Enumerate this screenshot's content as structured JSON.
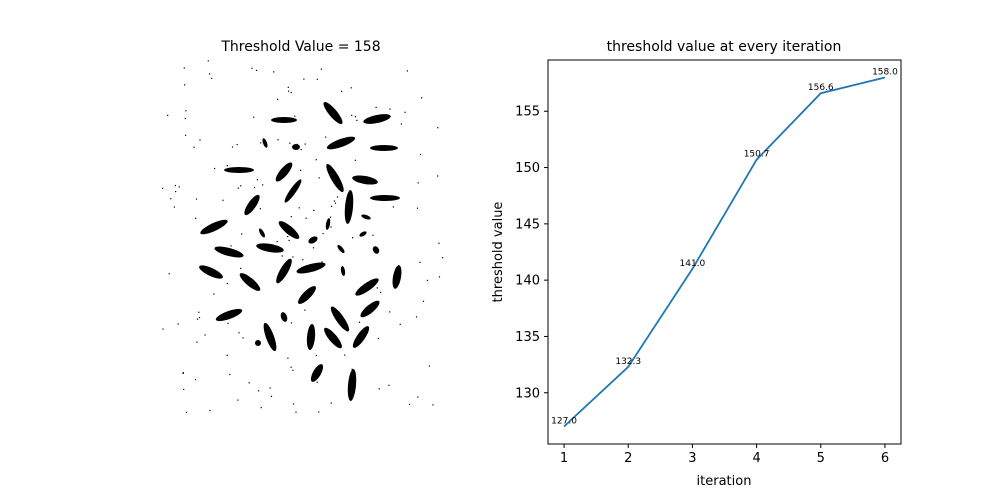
{
  "left_panel": {
    "title": "Threshold Value = 158"
  },
  "chart_data": {
    "type": "line",
    "title": "threshold value at every iteration",
    "xlabel": "iteration",
    "ylabel": "threshold value",
    "x": [
      1,
      2,
      3,
      4,
      5,
      6
    ],
    "series": [
      {
        "values": [
          127.0,
          132.3,
          141.0,
          150.7,
          156.6,
          158.0
        ],
        "color": "#1f77b4"
      }
    ],
    "point_labels": [
      "127.0",
      "132.3",
      "141.0",
      "150.7",
      "156.6",
      "158.0"
    ],
    "xticks": [
      "1",
      "2",
      "3",
      "4",
      "5",
      "6"
    ],
    "yticks": [
      "130",
      "135",
      "140",
      "145",
      "150",
      "155"
    ],
    "ytick_values": [
      130,
      135,
      140,
      145,
      150,
      155
    ],
    "xlim": [
      0.75,
      6.25
    ],
    "ylim": [
      125.45,
      159.55
    ],
    "grid": false
  }
}
